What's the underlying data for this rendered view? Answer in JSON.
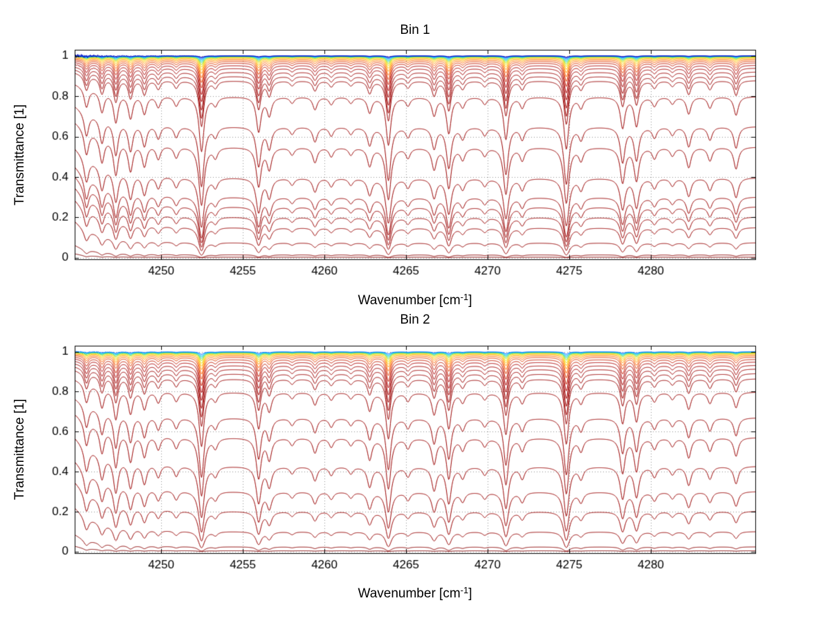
{
  "figure": {
    "background": "#ffffff"
  },
  "chart_data": {
    "type": "line",
    "description": "Two stacked MATLAB-style subplots of transmittance spectra (many atmospheric layers, jet-colored curves from blue near T=1 to dark red near T=0) versus wavenumber",
    "subplots": [
      {
        "title": "Bin 1",
        "ylabel": "Transmittance [1]",
        "xlabel_main": "Wavenumber [cm",
        "xlabel_sup": "-1",
        "xlabel_close": "]",
        "xlim": [
          4244.7,
          4286.4
        ],
        "ylim": [
          -0.008,
          1.03
        ],
        "xticks": [
          4250,
          4255,
          4260,
          4265,
          4270,
          4275,
          4280
        ],
        "xtick_labels": [
          "4250",
          "4255",
          "4260",
          "4265",
          "4270",
          "4275",
          "4280"
        ],
        "yticks": [
          0,
          0.2,
          0.4,
          0.6,
          0.8,
          1
        ],
        "ytick_labels": [
          "0",
          "0.2",
          "0.4",
          "0.6",
          "0.8",
          "1"
        ],
        "grid": true,
        "grid_color": "#8f8f8f",
        "axis_color": "#000000",
        "line_halfwidth": 0.16,
        "continuum": {
          "base": 0.05,
          "left_reduction": 0.35,
          "decay": 2.4
        },
        "absorption_lines": [
          [
            4245.4,
            0.05
          ],
          [
            4246.35,
            0.055
          ],
          [
            4247.2,
            0.08
          ],
          [
            4248.1,
            0.065
          ],
          [
            4248.95,
            0.05
          ],
          [
            4249.8,
            0.03
          ],
          [
            4250.9,
            0.025
          ],
          [
            4252.45,
            0.17
          ],
          [
            4253.3,
            0.022
          ],
          [
            4255.95,
            0.1
          ],
          [
            4256.6,
            0.05
          ],
          [
            4258.0,
            0.016
          ],
          [
            4259.4,
            0.034
          ],
          [
            4260.4,
            0.02
          ],
          [
            4261.6,
            0.016
          ],
          [
            4262.75,
            0.042
          ],
          [
            4263.9,
            0.145
          ],
          [
            4265.1,
            0.022
          ],
          [
            4266.7,
            0.05
          ],
          [
            4267.6,
            0.105
          ],
          [
            4268.45,
            0.026
          ],
          [
            4269.8,
            0.018
          ],
          [
            4271.1,
            0.125
          ],
          [
            4272.1,
            0.028
          ],
          [
            4274.8,
            0.16
          ],
          [
            4275.7,
            0.028
          ],
          [
            4278.25,
            0.088
          ],
          [
            4279.1,
            0.082
          ],
          [
            4280.2,
            0.024
          ],
          [
            4281.3,
            0.018
          ],
          [
            4282.3,
            0.046
          ],
          [
            4283.6,
            0.03
          ],
          [
            4285.2,
            0.05
          ]
        ],
        "series": [
          {
            "k": 120,
            "color": "#800000"
          },
          {
            "k": 85,
            "color": "#8b0000"
          },
          {
            "k": 52,
            "color": "#960000"
          },
          {
            "k": 38,
            "color": "#990000"
          },
          {
            "k": 32,
            "color": "#990000"
          },
          {
            "k": 27.5,
            "color": "#990000"
          },
          {
            "k": 24,
            "color": "#990000"
          },
          {
            "k": 18.5,
            "color": "#990000"
          },
          {
            "k": 12,
            "color": "#990000"
          },
          {
            "k": 8.6,
            "color": "#990000"
          },
          {
            "k": 4.5,
            "color": "#990000"
          },
          {
            "k": 2.6,
            "color": "#990000"
          },
          {
            "k": 2.1,
            "color": "#9b0000"
          },
          {
            "k": 1.65,
            "color": "#9e0000"
          },
          {
            "k": 1.25,
            "color": "#a30000",
            "noise": 0.004
          },
          {
            "k": 0.95,
            "color": "#ad0000"
          },
          {
            "k": 0.7,
            "color": "#c41a00"
          },
          {
            "k": 0.52,
            "color": "#e23b00"
          },
          {
            "k": 0.38,
            "color": "#ff6600"
          },
          {
            "k": 0.27,
            "color": "#ff9900"
          },
          {
            "k": 0.19,
            "color": "#ffc400"
          },
          {
            "k": 0.13,
            "color": "#e8e000"
          },
          {
            "k": 0.09,
            "color": "#9fe000"
          },
          {
            "k": 0.06,
            "color": "#3fd98c"
          },
          {
            "k": 0.04,
            "color": "#00d5d5",
            "noise": 0.003
          },
          {
            "k": 0.025,
            "color": "#00aaff",
            "noise": 0.005
          },
          {
            "k": 0.015,
            "color": "#0066ff",
            "noise": 0.008
          },
          {
            "k": 0.008,
            "color": "#0026e6",
            "noise": 0.011
          },
          {
            "k": 0.004,
            "color": "#0000b3",
            "noise": 0.013
          }
        ]
      },
      {
        "title": "Bin 2",
        "ylabel": "Transmittance [1]",
        "xlabel_main": "Wavenumber [cm",
        "xlabel_sup": "-1",
        "xlabel_close": "]",
        "xlim": [
          4244.7,
          4286.4
        ],
        "ylim": [
          -0.008,
          1.03
        ],
        "xticks": [
          4250,
          4255,
          4260,
          4265,
          4270,
          4275,
          4280
        ],
        "xtick_labels": [
          "4250",
          "4255",
          "4260",
          "4265",
          "4270",
          "4275",
          "4280"
        ],
        "yticks": [
          0,
          0.2,
          0.4,
          0.6,
          0.8,
          1
        ],
        "ytick_labels": [
          "0",
          "0.2",
          "0.4",
          "0.6",
          "0.8",
          "1"
        ],
        "grid": true,
        "grid_color": "#8f8f8f",
        "axis_color": "#000000",
        "line_halfwidth": 0.16,
        "continuum": {
          "base": 0.05,
          "left_reduction": 0.35,
          "decay": 2.4
        },
        "absorption_lines": [
          [
            4245.4,
            0.05
          ],
          [
            4246.35,
            0.055
          ],
          [
            4247.2,
            0.085
          ],
          [
            4248.1,
            0.065
          ],
          [
            4248.95,
            0.05
          ],
          [
            4249.8,
            0.03
          ],
          [
            4250.9,
            0.025
          ],
          [
            4252.45,
            0.17
          ],
          [
            4253.3,
            0.022
          ],
          [
            4255.95,
            0.105
          ],
          [
            4256.6,
            0.05
          ],
          [
            4258.0,
            0.016
          ],
          [
            4259.4,
            0.034
          ],
          [
            4260.4,
            0.02
          ],
          [
            4261.6,
            0.016
          ],
          [
            4262.75,
            0.05
          ],
          [
            4263.9,
            0.14
          ],
          [
            4265.1,
            0.022
          ],
          [
            4266.7,
            0.06
          ],
          [
            4267.6,
            0.105
          ],
          [
            4268.45,
            0.026
          ],
          [
            4269.8,
            0.018
          ],
          [
            4271.1,
            0.125
          ],
          [
            4272.1,
            0.028
          ],
          [
            4274.8,
            0.16
          ],
          [
            4275.7,
            0.028
          ],
          [
            4278.25,
            0.088
          ],
          [
            4279.1,
            0.082
          ],
          [
            4280.2,
            0.024
          ],
          [
            4281.3,
            0.018
          ],
          [
            4282.3,
            0.046
          ],
          [
            4283.6,
            0.03
          ],
          [
            4285.2,
            0.042
          ]
        ],
        "series": [
          {
            "k": 110,
            "color": "#800000"
          },
          {
            "k": 75,
            "color": "#8b0000"
          },
          {
            "k": 46,
            "color": "#960000"
          },
          {
            "k": 32,
            "color": "#990000"
          },
          {
            "k": 24,
            "color": "#990000"
          },
          {
            "k": 17,
            "color": "#990000"
          },
          {
            "k": 11.2,
            "color": "#990000"
          },
          {
            "k": 8,
            "color": "#990000"
          },
          {
            "k": 4.5,
            "color": "#990000"
          },
          {
            "k": 2.9,
            "color": "#990000"
          },
          {
            "k": 2.3,
            "color": "#9b0000"
          },
          {
            "k": 1.8,
            "color": "#9e0000"
          },
          {
            "k": 1.4,
            "color": "#a30000"
          },
          {
            "k": 1.05,
            "color": "#ad0000"
          },
          {
            "k": 0.78,
            "color": "#c41a00"
          },
          {
            "k": 0.55,
            "color": "#e23b00"
          },
          {
            "k": 0.4,
            "color": "#ff6600"
          },
          {
            "k": 0.28,
            "color": "#ff9900"
          },
          {
            "k": 0.2,
            "color": "#ffc400"
          },
          {
            "k": 0.14,
            "color": "#e8e000",
            "noise": 0.003
          },
          {
            "k": 0.09,
            "color": "#8fdc00",
            "noise": 0.004
          },
          {
            "k": 0.06,
            "color": "#2fd98c",
            "noise": 0.005
          },
          {
            "k": 0.04,
            "color": "#00d5d5",
            "noise": 0.006
          },
          {
            "k": 0.025,
            "color": "#00b4ff",
            "noise": 0.005
          },
          {
            "k": 0.012,
            "color": "#0066ff",
            "noise": 0.004
          }
        ]
      }
    ]
  }
}
